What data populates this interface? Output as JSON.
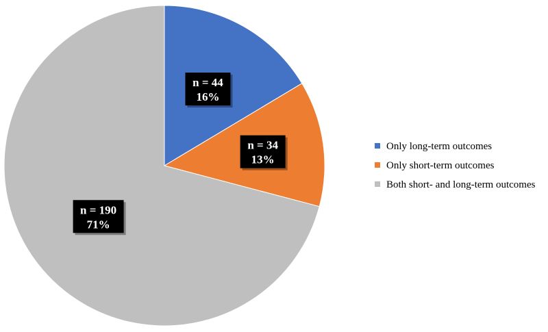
{
  "chart_data": {
    "type": "pie",
    "title": "",
    "slices": [
      {
        "name": "Only long-term outcomes",
        "count_label": "n = 44",
        "percent_label": "16%",
        "value": 44,
        "color": "#4472c4"
      },
      {
        "name": "Only short-term outcomes",
        "count_label": "n = 34",
        "percent_label": "13%",
        "value": 34,
        "color": "#ed7d31"
      },
      {
        "name": "Both short- and long-term outcomes",
        "count_label": "n = 190",
        "percent_label": "71%",
        "value": 190,
        "color": "#bfbfbf"
      }
    ],
    "legend_position": "right",
    "start_angle": "12 o'clock",
    "direction": "clockwise"
  }
}
